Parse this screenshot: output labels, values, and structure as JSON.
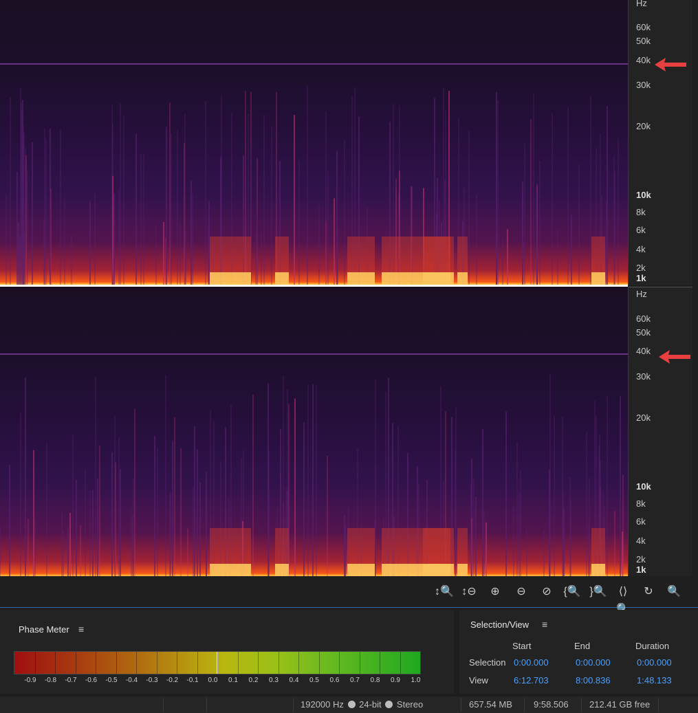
{
  "spectrogram": {
    "channels": [
      {
        "id": "ch1"
      },
      {
        "id": "ch2"
      }
    ],
    "ruler_ticks": [
      "Hz",
      "60k",
      "50k",
      "40k",
      "30k",
      "20k",
      "10k",
      "8k",
      "6k",
      "4k",
      "2k",
      "1k"
    ],
    "bold_ticks": [
      "10k",
      "1k"
    ]
  },
  "annotations": {
    "arrow_color": "#e84040"
  },
  "zoom_toolbar": {
    "icons": [
      "zoom-in-amplitude-icon",
      "zoom-out-amplitude-icon",
      "zoom-in-time-icon",
      "zoom-out-time-icon",
      "zoom-out-full-icon",
      "zoom-in-left-icon",
      "zoom-in-right-icon",
      "zoom-selection-icon",
      "zoom-reset-icon",
      "zoom-disabled-icon"
    ]
  },
  "phase_meter": {
    "title": "Phase Meter",
    "scale": [
      "-0.9",
      "-0.8",
      "-0.7",
      "-0.6",
      "-0.5",
      "-0.4",
      "-0.3",
      "-0.2",
      "-0.1",
      "0.0",
      "0.1",
      "0.2",
      "0.3",
      "0.4",
      "0.5",
      "0.6",
      "0.7",
      "0.8",
      "0.9",
      "1.0"
    ]
  },
  "selection_view": {
    "title": "Selection/View",
    "headers": {
      "start": "Start",
      "end": "End",
      "duration": "Duration"
    },
    "selection": {
      "label": "Selection",
      "start": "0:00.000",
      "end": "0:00.000",
      "duration": "0:00.000"
    },
    "view": {
      "label": "View",
      "start": "6:12.703",
      "end": "8:00.836",
      "duration": "1:48.133"
    }
  },
  "status_bar": {
    "sample_rate": "192000 Hz",
    "bit_depth": "24-bit",
    "channels": "Stereo",
    "file_size": "657.54 MB",
    "duration": "9:58.506",
    "free_space": "212.41 GB free"
  }
}
